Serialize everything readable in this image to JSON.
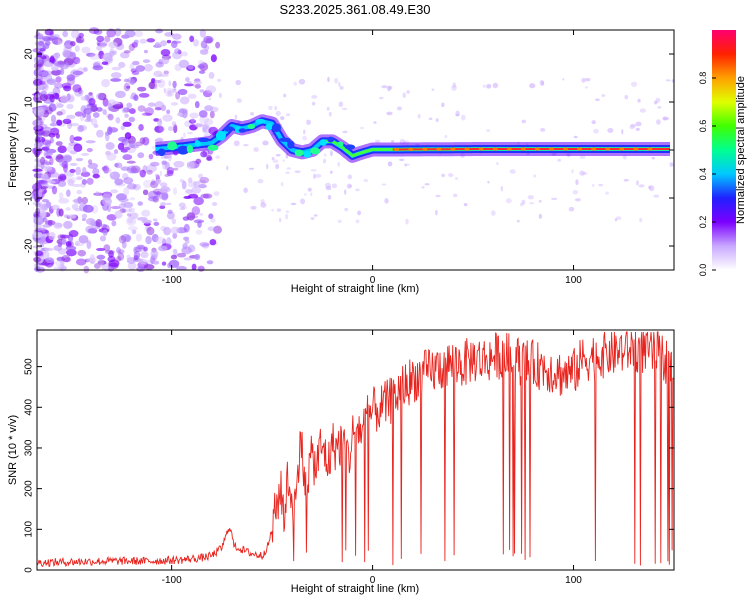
{
  "title": "S233.2025.361.08.49.E30",
  "chart_data": [
    {
      "type": "heatmap",
      "name": "spectrogram",
      "xlabel": "Height of straight line (km)",
      "ylabel": "Frequency (Hz)",
      "xlim": [
        -167,
        150
      ],
      "ylim": [
        -25,
        25
      ],
      "xticks": [
        -100,
        0,
        100
      ],
      "xtick_labels": [
        "-100",
        "0",
        "100"
      ],
      "yticks": [
        -20,
        -10,
        0,
        10,
        20
      ],
      "ytick_labels": [
        "-20",
        "-10",
        "0",
        "10",
        "20"
      ],
      "ridge": {
        "x": [
          -108,
          -100,
          -90,
          -80,
          -75,
          -70,
          -65,
          -60,
          -55,
          -50,
          -45,
          -40,
          -35,
          -30,
          -25,
          -20,
          -15,
          -10,
          -5,
          0,
          10,
          50,
          100,
          148
        ],
        "y": [
          0.2,
          0.5,
          1,
          1.5,
          3,
          5,
          4.5,
          5,
          6,
          5.5,
          2,
          0,
          -0.5,
          0,
          1.8,
          1.8,
          0.5,
          -1.2,
          -0.5,
          0.1,
          0.1,
          0.2,
          0.2,
          0.2
        ]
      },
      "ridge_note": "Strong ridge near 0 Hz from about -108 to 148 km; scattered low-amplitude noise below -100 km"
    },
    {
      "type": "colorbar",
      "name": "colorbar",
      "label": "Normalized spectral amplitude",
      "range": [
        0,
        1
      ],
      "ticks": [
        0.0,
        0.2,
        0.4,
        0.6,
        0.8
      ],
      "tick_labels": [
        "0.0",
        "0.2",
        "0.4",
        "0.6",
        "0.8"
      ],
      "colors": [
        "#ffffff",
        "#c8a8ff",
        "#7b00ff",
        "#2020ff",
        "#00c8ff",
        "#00ff90",
        "#40ff00",
        "#e0ff00",
        "#ffa000",
        "#ff2000",
        "#ff0070"
      ]
    },
    {
      "type": "line",
      "name": "snr",
      "xlabel": "Height of straight line (km)",
      "ylabel": "SNR (10 * v/v)",
      "xlim": [
        -167,
        150
      ],
      "ylim": [
        0,
        590
      ],
      "xticks": [
        -100,
        0,
        100
      ],
      "xtick_labels": [
        "-100",
        "0",
        "100"
      ],
      "yticks": [
        0,
        100,
        200,
        300,
        400,
        500
      ],
      "ytick_labels": [
        "0",
        "100",
        "200",
        "300",
        "400",
        "500"
      ],
      "series": [
        {
          "name": "SNR",
          "color": "#e8241e",
          "x": [
            -167,
            -150,
            -130,
            -110,
            -95,
            -85,
            -80,
            -75,
            -71,
            -69,
            -65,
            -60,
            -55,
            -52,
            -50,
            -48,
            -46,
            -44,
            -42,
            -40,
            -38,
            -36,
            -34,
            -32,
            -30,
            -28,
            -26,
            -24,
            -22,
            -20,
            -18,
            -16,
            -14,
            -12,
            -10,
            -8,
            -6,
            -4,
            -2,
            0,
            5,
            10,
            15,
            20,
            25,
            30,
            35,
            40,
            45,
            50,
            55,
            60,
            65,
            70,
            75,
            80,
            85,
            90,
            95,
            100,
            105,
            110,
            115,
            120,
            125,
            130,
            135,
            140,
            145,
            150
          ],
          "y": [
            18,
            20,
            22,
            22,
            25,
            30,
            35,
            55,
            110,
            60,
            50,
            40,
            35,
            60,
            100,
            150,
            200,
            140,
            230,
            170,
            160,
            350,
            220,
            240,
            280,
            250,
            300,
            290,
            260,
            310,
            300,
            310,
            320,
            270,
            330,
            360,
            340,
            360,
            380,
            390,
            400,
            420,
            450,
            470,
            480,
            490,
            500,
            510,
            505,
            520,
            515,
            525,
            530,
            520,
            510,
            505,
            500,
            490,
            480,
            485,
            520,
            525,
            530,
            535,
            540,
            545,
            540,
            535,
            520,
            500
          ]
        }
      ]
    }
  ]
}
